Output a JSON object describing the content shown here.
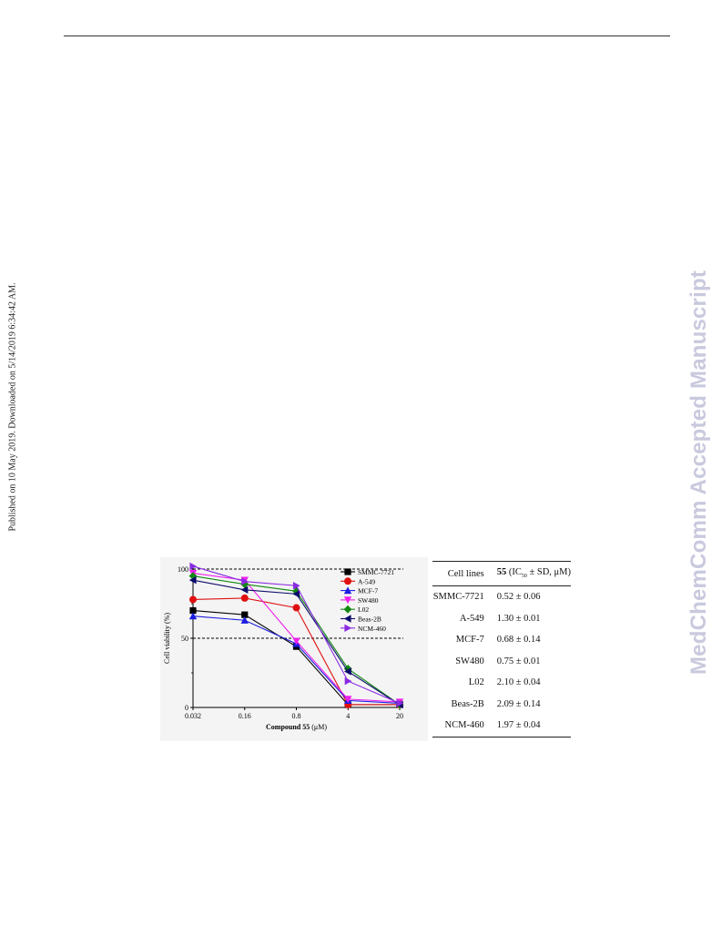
{
  "side_note": "Published on 10 May 2019. Downloaded on 5/14/2019 6:34:42 AM.",
  "watermark": "MedChemComm Accepted Manuscript",
  "chart_data": {
    "type": "line",
    "x": [
      0.032,
      0.16,
      0.8,
      4,
      20
    ],
    "x_tick_labels": [
      "0.032",
      "0.16",
      "0.8",
      "4",
      "20"
    ],
    "x_scale": "log",
    "xlabel_bold": "Compound 55",
    "xlabel_unit": " (μM)",
    "ylabel": "Cell viability (%)",
    "ylim": [
      0,
      100
    ],
    "y_ticks": [
      0,
      50,
      100
    ],
    "reference_lines": [
      50,
      100
    ],
    "legend_position": "top-right",
    "series": [
      {
        "name": "SMMC-7721",
        "color": "#000000",
        "marker": "square",
        "values": [
          70,
          67,
          44,
          2,
          2
        ]
      },
      {
        "name": "A-549",
        "color": "#e01010",
        "marker": "circle",
        "values": [
          78,
          79,
          72,
          2,
          2
        ]
      },
      {
        "name": "MCF-7",
        "color": "#1c1ce0",
        "marker": "triangle-up",
        "values": [
          66,
          63,
          46,
          5,
          3
        ]
      },
      {
        "name": "SW480",
        "color": "#ee20ee",
        "marker": "triangle-down",
        "values": [
          97,
          92,
          48,
          6,
          4
        ]
      },
      {
        "name": "L02",
        "color": "#118811",
        "marker": "diamond",
        "values": [
          95,
          89,
          84,
          28,
          2
        ]
      },
      {
        "name": "Beas-2B",
        "color": "#0b0b6b",
        "marker": "triangle-left",
        "values": [
          92,
          85,
          82,
          26,
          2
        ]
      },
      {
        "name": "NCM-460",
        "color": "#8a2be2",
        "marker": "triangle-right",
        "values": [
          102,
          91,
          88,
          19,
          3
        ]
      }
    ]
  },
  "table": {
    "header_col1": "Cell lines",
    "header_col2_bold": "55",
    "header_col2_a": " (IC",
    "header_col2_sub": "50",
    "header_col2_b": " ± SD, μM)",
    "rows": [
      {
        "cell_line": "SMMC-7721",
        "ic50": "0.52 ± 0.06"
      },
      {
        "cell_line": "A-549",
        "ic50": "1.30 ± 0.01"
      },
      {
        "cell_line": "MCF-7",
        "ic50": "0.68 ± 0.14"
      },
      {
        "cell_line": "SW480",
        "ic50": "0.75 ± 0.01"
      },
      {
        "cell_line": "L02",
        "ic50": "2.10 ± 0.04"
      },
      {
        "cell_line": "Beas-2B",
        "ic50": "2.09 ± 0.14"
      },
      {
        "cell_line": "NCM-460",
        "ic50": "1.97 ± 0.04"
      }
    ]
  }
}
